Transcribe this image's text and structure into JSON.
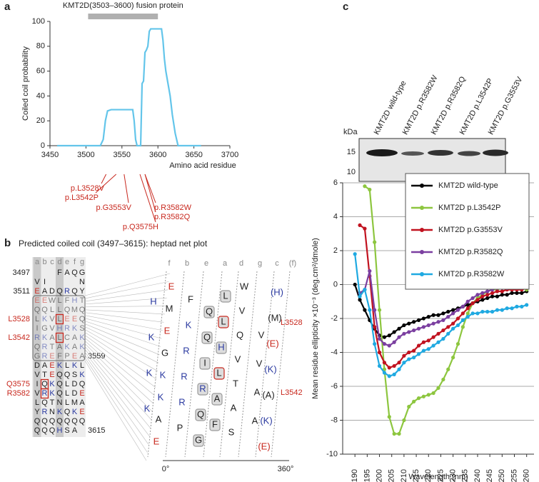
{
  "panel_labels": [
    "a",
    "b",
    "c"
  ],
  "chart_data": [
    {
      "type": "line",
      "x_label": "Amino acid residue",
      "y_label": "Coiled coil probability",
      "color": "#63c5ea",
      "x": [
        3460,
        3520,
        3524,
        3527,
        3530,
        3535,
        3545,
        3555,
        3565,
        3567,
        3569,
        3571,
        3576,
        3578,
        3580,
        3582,
        3584,
        3586,
        3588,
        3590,
        3592,
        3596,
        3600,
        3605,
        3607,
        3609,
        3611,
        3614,
        3617,
        3620,
        3624,
        3628,
        3660
      ],
      "values": [
        0,
        0,
        5,
        20,
        28,
        29,
        29,
        29,
        29,
        20,
        5,
        0,
        0,
        50,
        52,
        75,
        77,
        80,
        92,
        94,
        94,
        94,
        94,
        94,
        85,
        70,
        60,
        50,
        40,
        25,
        10,
        0,
        0
      ],
      "xlim": [
        3450,
        3700
      ],
      "ylim": [
        0,
        100
      ],
      "xticks": [
        3450,
        3500,
        3550,
        3600,
        3650,
        3700
      ],
      "yticks": [
        0,
        20,
        40,
        60,
        80,
        100
      ],
      "bar": {
        "label": "KMT2D(3503–3600) fusion protein",
        "range": [
          3503,
          3600
        ]
      },
      "mutations": [
        {
          "label": "p.L3528V",
          "residue": 3528
        },
        {
          "label": "p.L3542P",
          "residue": 3542
        },
        {
          "label": "p.G3553V",
          "residue": 3553
        },
        {
          "label": "p.Q3575H",
          "residue": 3575
        },
        {
          "label": "p.R3582W",
          "residue": 3582
        },
        {
          "label": "p.R3582Q",
          "residue": 3582
        }
      ]
    },
    {
      "type": "line",
      "x_label": "Wavelength (nm)",
      "y_label": "Mean residue ellipticity ×10⁻³ (deg.cm²/dmole)",
      "grid": true,
      "legend": "upper right",
      "x": [
        190,
        192,
        194,
        196,
        198,
        200,
        202,
        204,
        206,
        208,
        210,
        212,
        214,
        216,
        218,
        220,
        222,
        224,
        226,
        228,
        230,
        232,
        234,
        236,
        238,
        240,
        242,
        244,
        246,
        248,
        250,
        252,
        254,
        256,
        258,
        260
      ],
      "xlim": [
        185,
        263
      ],
      "ylim": [
        -10,
        6
      ],
      "xticks": [
        190,
        195,
        200,
        205,
        210,
        215,
        220,
        225,
        230,
        235,
        240,
        245,
        250,
        255,
        260
      ],
      "yticks": [
        -10,
        -8,
        -6,
        -4,
        -2,
        0,
        2,
        4,
        6
      ],
      "series": [
        {
          "name": "KMT2D wild-type",
          "color": "#000000",
          "values": [
            0,
            -0.9,
            -1.5,
            -2.1,
            -2.6,
            -3.0,
            -3.1,
            -3.0,
            -2.8,
            -2.6,
            -2.4,
            -2.3,
            -2.2,
            -2.1,
            -2.0,
            -1.9,
            -1.8,
            -1.8,
            -1.7,
            -1.6,
            -1.5,
            -1.4,
            -1.3,
            -1.2,
            -1.1,
            -1.0,
            -0.9,
            -0.8,
            -0.7,
            -0.7,
            -0.6,
            -0.6,
            -0.5,
            -0.5,
            -0.5,
            -0.4
          ]
        },
        {
          "name": "KMT2D p.L3542P",
          "color": "#8dc63f",
          "values": [
            null,
            null,
            5.8,
            5.6,
            2.5,
            -1.5,
            -5,
            -7.8,
            -8.8,
            -8.8,
            -8.0,
            -7.2,
            -6.9,
            -6.7,
            -6.6,
            -6.5,
            -6.4,
            -6.1,
            -5.6,
            -5.0,
            -4.3,
            -3.5,
            -2.5,
            -1.7,
            -1.1,
            -0.8,
            -0.6,
            -0.4,
            -0.3,
            -0.3,
            -0.2,
            -0.2,
            -0.2,
            -0.2,
            -0.2,
            -0.3
          ]
        },
        {
          "name": "KMT2D p.G3553V",
          "color": "#c1121f",
          "values": [
            null,
            3.5,
            3.3,
            0.5,
            -2.5,
            -4.0,
            -4.6,
            -4.9,
            -4.8,
            -4.6,
            -4.2,
            -4.0,
            -3.9,
            -3.6,
            -3.4,
            -3.3,
            -3.1,
            -2.9,
            -2.7,
            -2.5,
            -2.3,
            -2.0,
            -1.7,
            -1.4,
            -1.1,
            -0.9,
            -0.7,
            -0.6,
            -0.5,
            -0.4,
            -0.4,
            -0.3,
            -0.3,
            -0.3,
            -0.3,
            -0.2
          ]
        },
        {
          "name": "KMT2D p.R3582Q",
          "color": "#7b3fa0",
          "values": [
            null,
            -0.5,
            -0.3,
            0.8,
            -1.5,
            -3.2,
            -3.5,
            -3.6,
            -3.4,
            -3.1,
            -2.9,
            -2.8,
            -2.7,
            -2.6,
            -2.5,
            -2.4,
            -2.3,
            -2.2,
            -2.1,
            -1.9,
            -1.7,
            -1.5,
            -1.3,
            -1.0,
            -0.8,
            -0.6,
            -0.5,
            -0.4,
            -0.3,
            -0.2,
            -0.2,
            -0.2,
            -0.1,
            -0.1,
            -0.1,
            -0.1
          ]
        },
        {
          "name": "KMT2D p.R3582W",
          "color": "#1fa9e1",
          "values": [
            1.8,
            -0.7,
            -0.3,
            -1.5,
            -3.5,
            -4.8,
            -5.2,
            -5.4,
            -5.3,
            -5.0,
            -4.6,
            -4.4,
            -4.3,
            -4.1,
            -3.9,
            -3.8,
            -3.6,
            -3.4,
            -3.2,
            -2.9,
            -2.6,
            -2.4,
            -2.1,
            -1.9,
            -1.7,
            -1.7,
            -1.6,
            -1.6,
            -1.6,
            -1.5,
            -1.5,
            -1.4,
            -1.4,
            -1.3,
            -1.3,
            -1.2
          ]
        }
      ]
    }
  ],
  "blot": {
    "kda_label": "kDa",
    "markers": [
      15,
      10
    ],
    "lanes": [
      "KMT2D wild-type",
      "KMT2D p.R3582W",
      "KMT2D p.R3582Q",
      "KMT2D p.L3542P",
      "KMT2D p.G3553V"
    ]
  },
  "heptad": {
    "title": "Predicted coiled coil (3497–3615): heptad net plot",
    "columns": [
      "a",
      "b",
      "c",
      "d",
      "e",
      "f",
      "g"
    ],
    "rows": [
      {
        "left": "3497",
        "cells": [
          "",
          "",
          "",
          "F",
          "A",
          "Q",
          "G"
        ]
      },
      {
        "cells": [
          "V",
          "I",
          "",
          "",
          "",
          "",
          "N"
        ]
      },
      {
        "left": "3511",
        "cells": [
          "E",
          "A",
          "D",
          "Q",
          "R",
          "Q",
          "Y"
        ]
      },
      {
        "cells": [
          "E",
          "E",
          "W",
          "L",
          "F",
          "H",
          "T"
        ]
      },
      {
        "cells": [
          "Q",
          "Q",
          "L",
          "L",
          "Q",
          "M",
          "Q"
        ]
      },
      {
        "left": "L3528",
        "cells": [
          "L",
          "K",
          "V",
          "L",
          "E",
          "E",
          "Q"
        ]
      },
      {
        "cells": [
          "I",
          "G",
          "V",
          "H",
          "R",
          "K",
          "S"
        ]
      },
      {
        "left": "L3542",
        "cells": [
          "R",
          "K",
          "A",
          "L",
          "C",
          "A",
          "K"
        ]
      },
      {
        "cells": [
          "Q",
          "R",
          "T",
          "A",
          "K",
          "A",
          "K"
        ]
      },
      {
        "right": "3559",
        "cells": [
          "G",
          "R",
          "E",
          "F",
          "P",
          "E",
          "A"
        ]
      },
      {
        "cells": [
          "D",
          "A",
          "E",
          "K",
          "L",
          "K",
          "L"
        ]
      },
      {
        "cells": [
          "V",
          "T",
          "E",
          "Q",
          "Q",
          "S",
          "K"
        ]
      },
      {
        "left": "Q3575",
        "cells": [
          "I",
          "Q",
          "K",
          "Q",
          "L",
          "D",
          "Q"
        ]
      },
      {
        "left": "R3582",
        "cells": [
          "V",
          "R",
          "K",
          "Q",
          "L",
          "D",
          "E"
        ]
      },
      {
        "cells": [
          "L",
          "Q",
          "T",
          "N",
          "L",
          "M",
          "A"
        ]
      },
      {
        "cells": [
          "Y",
          "R",
          "N",
          "K",
          "Q",
          "K",
          "E"
        ]
      },
      {
        "cells": [
          "Q",
          "Q",
          "Q",
          "Q",
          "Q",
          "Q",
          "Q"
        ]
      },
      {
        "right": "3615",
        "cells": [
          "Q",
          "Q",
          "Q",
          "H",
          "S",
          "A",
          ""
        ]
      }
    ]
  },
  "net": {
    "columns": [
      {
        "header": "f",
        "letters": [
          "H",
          "K",
          "K",
          "K"
        ]
      },
      {
        "header": "b",
        "letters": [
          "E",
          "M",
          "E",
          "G",
          "K",
          "K",
          "A",
          "E"
        ]
      },
      {
        "header": "e",
        "letters": [
          "F",
          "K",
          "R",
          "R",
          "R",
          "P"
        ]
      },
      {
        "header": "a",
        "letters": [
          "Q",
          "Q",
          "I",
          "R",
          "Q",
          "G"
        ]
      },
      {
        "header": "d",
        "letters": [
          "L",
          "L",
          "H",
          "L",
          "A",
          "F"
        ]
      },
      {
        "header": "g",
        "letters": [
          "W",
          "V",
          "Q",
          "V",
          "T",
          "A",
          "S"
        ]
      },
      {
        "header": "c",
        "letters": [
          "V",
          "V",
          "A",
          "A"
        ]
      },
      {
        "header": "(f)",
        "letters": [
          "(H)",
          "(M)",
          "(E)",
          "(K)",
          "(A)",
          "(K)",
          "(E)"
        ]
      }
    ],
    "labels": [
      "L3528",
      "L3542"
    ],
    "axis": [
      "0°",
      "360°"
    ]
  }
}
